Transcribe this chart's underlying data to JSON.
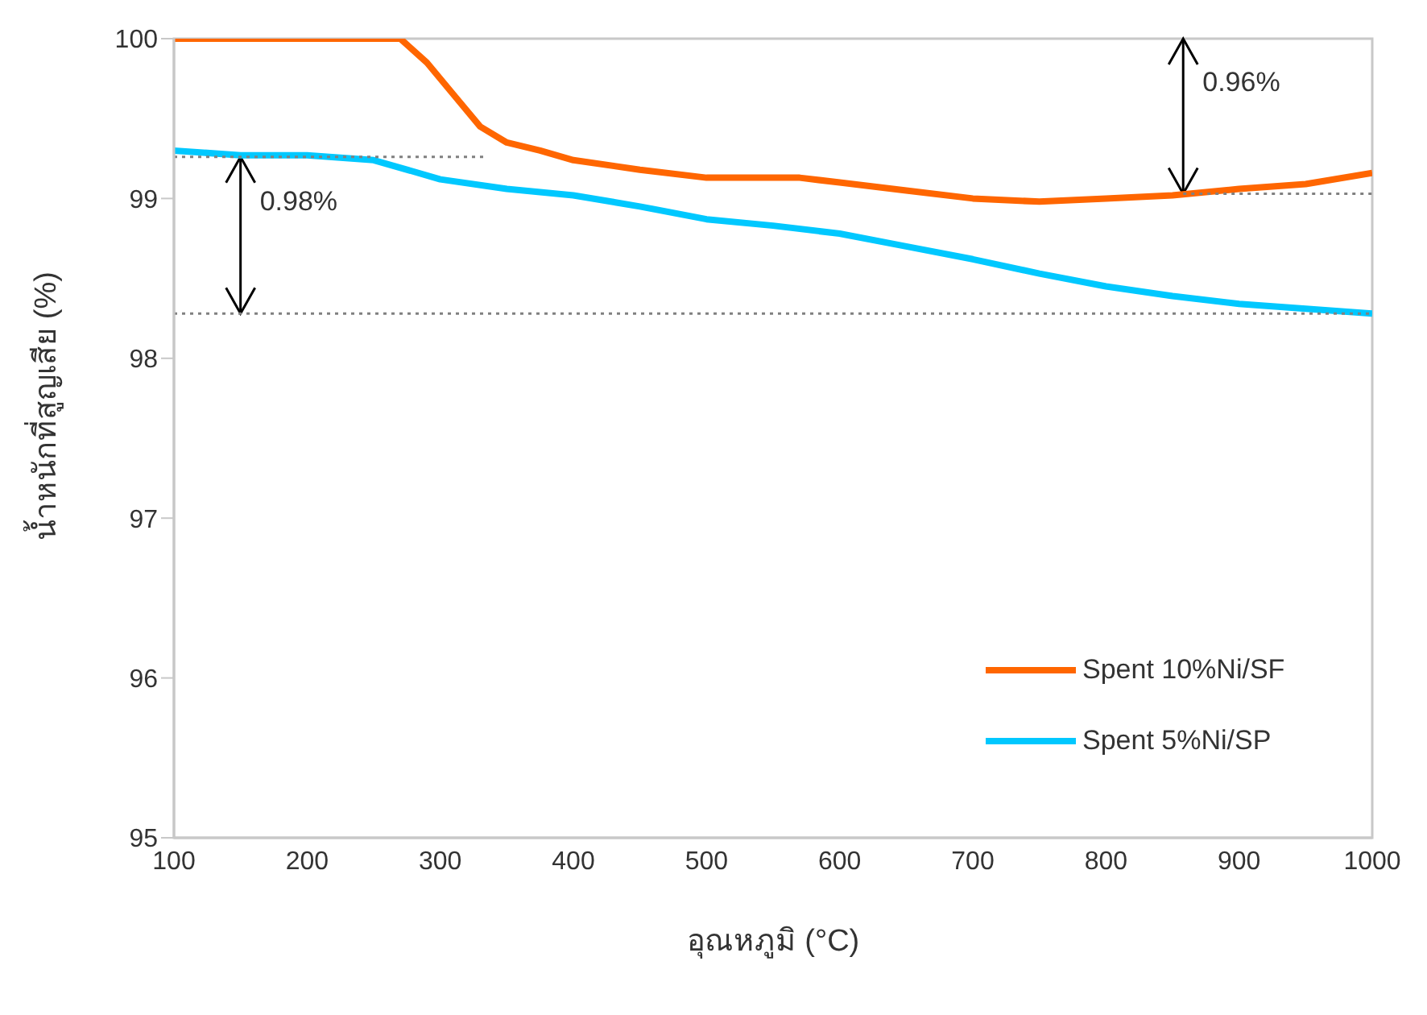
{
  "chart_data": {
    "type": "line",
    "xlabel": "อุณหภูมิ (°C)",
    "ylabel": "น้ำหนักที่สูญเสีย (%)",
    "xlim": [
      100,
      1000
    ],
    "xticks": [
      100,
      200,
      300,
      400,
      500,
      600,
      700,
      800,
      900,
      1000
    ],
    "ylim": [
      95,
      100
    ],
    "yticks": [
      95,
      96,
      97,
      98,
      99,
      100
    ],
    "grid": false,
    "legend": "bottom right",
    "marker": "none",
    "line_style": "solid",
    "annotations": [
      {
        "text": "0.98%",
        "x": 150,
        "y": 99.26
      },
      {
        "text": "0.96%",
        "x": 858,
        "y": 99.03
      }
    ],
    "series": [
      {
        "name": "Spent 10%Ni/SF",
        "color": "#ff6600",
        "x": [
          100,
          270,
          290,
          310,
          330,
          350,
          375,
          400,
          450,
          500,
          570,
          600,
          650,
          700,
          750,
          800,
          850,
          900,
          950,
          1000
        ],
        "values": [
          100,
          100,
          99.85,
          99.65,
          99.45,
          99.35,
          99.3,
          99.24,
          99.18,
          99.13,
          99.13,
          99.1,
          99.05,
          99.0,
          98.98,
          99.0,
          99.02,
          99.06,
          99.09,
          99.16
        ]
      },
      {
        "name": "Spent 5%Ni/SP",
        "color": "#00c8ff",
        "x": [
          100,
          150,
          200,
          250,
          300,
          350,
          400,
          450,
          500,
          550,
          600,
          650,
          700,
          750,
          800,
          850,
          900,
          950,
          1000
        ],
        "values": [
          99.3,
          99.27,
          99.27,
          99.24,
          99.12,
          99.06,
          99.02,
          98.95,
          98.87,
          98.83,
          98.78,
          98.7,
          98.62,
          98.53,
          98.45,
          98.39,
          98.34,
          98.31,
          98.28
        ]
      },
      {
        "color": "#808080",
        "line_style": "dotted",
        "x": [
          100,
          335
        ],
        "values": [
          99.26,
          99.26
        ]
      },
      {
        "color": "#808080",
        "line_style": "dotted",
        "x": [
          100,
          1000
        ],
        "values": [
          98.28,
          98.28
        ]
      },
      {
        "color": "#808080",
        "line_style": "dotted",
        "x": [
          858,
          1000
        ],
        "values": [
          99.03,
          99.03
        ]
      }
    ]
  }
}
